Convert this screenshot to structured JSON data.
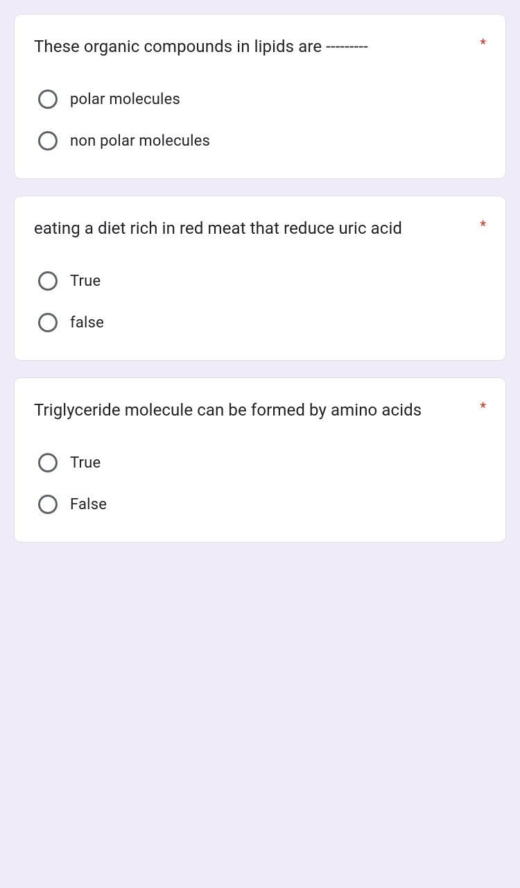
{
  "background_color": "#f0ebf8",
  "card_background": "#ffffff",
  "card_border": "#e0e0e0",
  "text_color": "#202124",
  "asterisk_color": "#d93025",
  "radio_border_color": "#5f6368",
  "question_fontsize": 24,
  "option_fontsize": 22,
  "questions": [
    {
      "text": "These organic compounds in lipids are ---------",
      "required": "*",
      "options": [
        {
          "label": "polar molecules"
        },
        {
          "label": "non polar molecules"
        }
      ]
    },
    {
      "text": "eating a diet  rich in red meat that reduce uric acid",
      "required": "*",
      "options": [
        {
          "label": "True"
        },
        {
          "label": "false"
        }
      ]
    },
    {
      "text": "Triglyceride molecule can be formed by amino acids",
      "required": "*",
      "options": [
        {
          "label": "True"
        },
        {
          "label": "False"
        }
      ]
    }
  ]
}
